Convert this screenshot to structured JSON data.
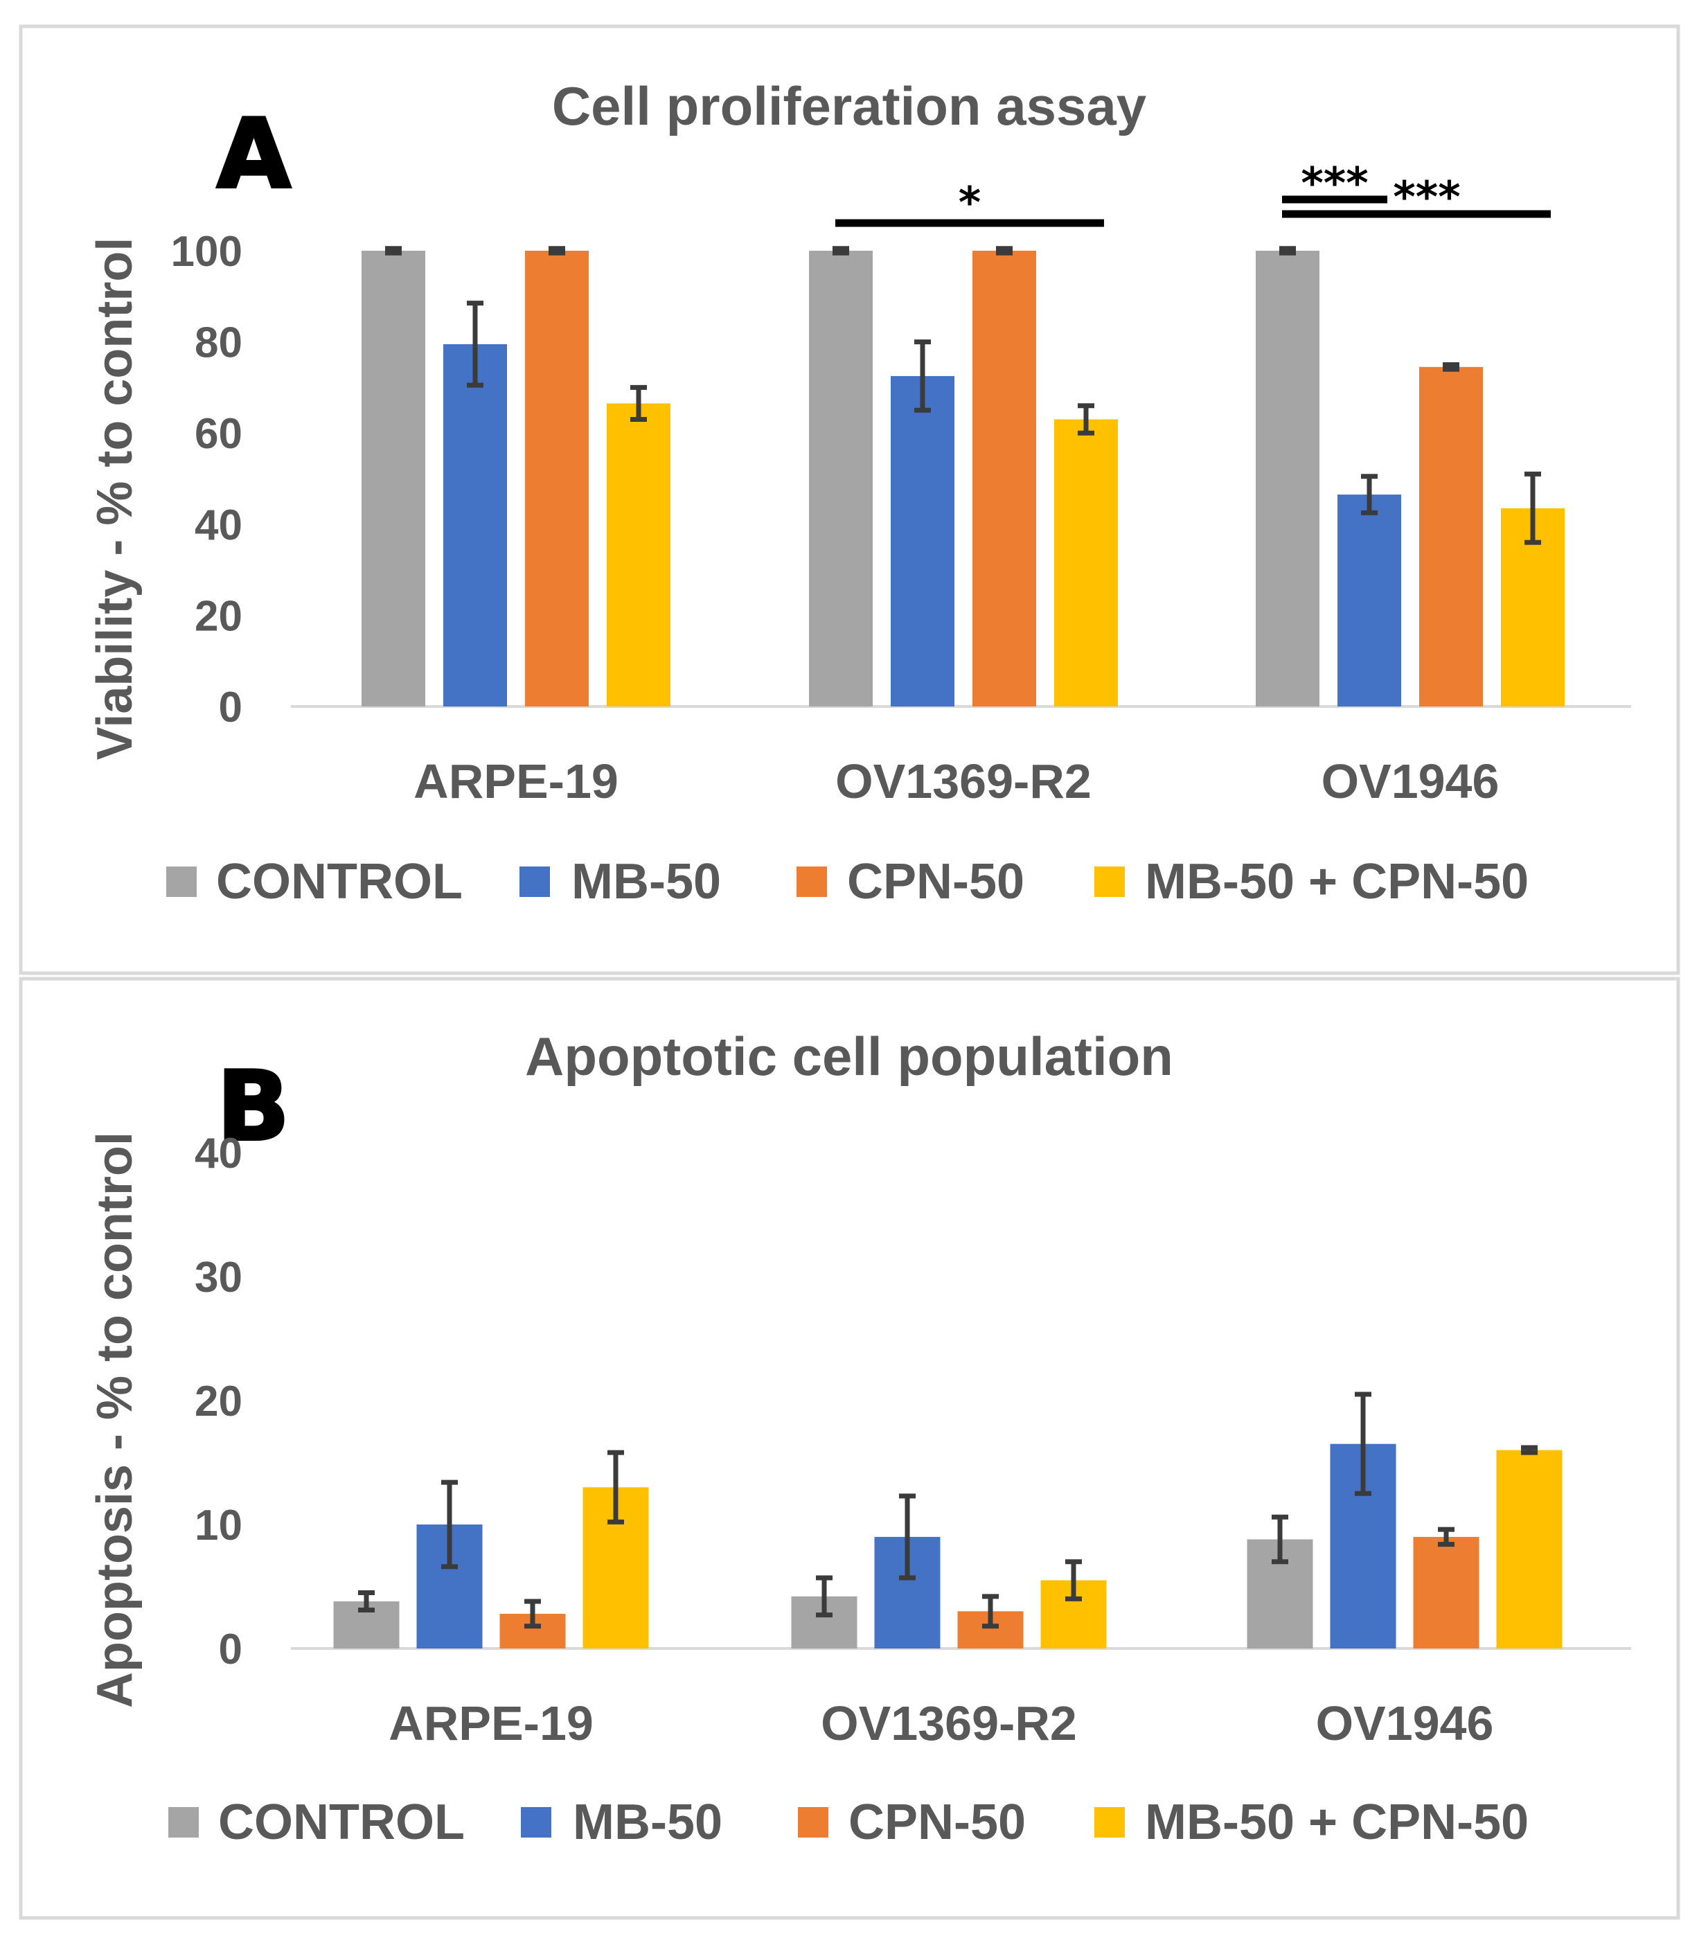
{
  "colors": {
    "CONTROL": "#a5a5a5",
    "MB-50": "#4472c4",
    "CPN-50": "#ed7d31",
    "MB-50 + CPN-50": "#ffc000"
  },
  "chart_data": [
    {
      "panel": "A",
      "type": "bar",
      "title": "Cell proliferation assay",
      "xlabel": "",
      "ylabel": "Viability - % to control",
      "ylim": [
        0,
        100
      ],
      "yticks": [
        "0",
        "20",
        "40",
        "60",
        "80",
        "100"
      ],
      "categories": [
        "ARPE-19",
        "OV1369-R2",
        "OV1946"
      ],
      "legend_position": "bottom",
      "series": [
        {
          "name": "CONTROL",
          "values": [
            100,
            100,
            100
          ],
          "errors": [
            0.5,
            0.5,
            0.5
          ]
        },
        {
          "name": "MB-50",
          "values": [
            79.5,
            72.5,
            46.5
          ],
          "errors": [
            9,
            7.5,
            4
          ]
        },
        {
          "name": "CPN-50",
          "values": [
            100,
            100,
            74.5
          ],
          "errors": [
            0.5,
            0.5,
            0.5
          ]
        },
        {
          "name": "MB-50 + CPN-50",
          "values": [
            66.5,
            63,
            43.5
          ],
          "errors": [
            3.5,
            3,
            7.5
          ]
        }
      ],
      "significance": [
        {
          "label": "*",
          "category": "OV1369-R2",
          "from_series": "CONTROL",
          "to_series": "MB-50 + CPN-50"
        },
        {
          "label": "***",
          "category": "OV1946",
          "from_series": "CONTROL",
          "to_series": "MB-50"
        },
        {
          "label": "***",
          "category": "OV1946",
          "from_series": "CONTROL",
          "to_series": "MB-50 + CPN-50"
        }
      ]
    },
    {
      "panel": "B",
      "type": "bar",
      "title": "Apoptotic cell population",
      "xlabel": "",
      "ylabel": "Apoptosis - % to control",
      "ylim": [
        0,
        40
      ],
      "yticks": [
        "0",
        "10",
        "20",
        "30",
        "40"
      ],
      "categories": [
        "ARPE-19",
        "OV1369-R2",
        "OV1946"
      ],
      "legend_position": "bottom",
      "series": [
        {
          "name": "CONTROL",
          "values": [
            3.8,
            4.2,
            8.8
          ],
          "errors": [
            0.7,
            1.5,
            1.8
          ]
        },
        {
          "name": "MB-50",
          "values": [
            10,
            9,
            16.5
          ],
          "errors": [
            3.4,
            3.3,
            4
          ]
        },
        {
          "name": "CPN-50",
          "values": [
            2.8,
            3,
            9
          ],
          "errors": [
            1,
            1.2,
            0.6
          ]
        },
        {
          "name": "MB-50 + CPN-50",
          "values": [
            13,
            5.5,
            16
          ],
          "errors": [
            2.8,
            1.5,
            0.2
          ]
        }
      ],
      "significance": []
    }
  ]
}
